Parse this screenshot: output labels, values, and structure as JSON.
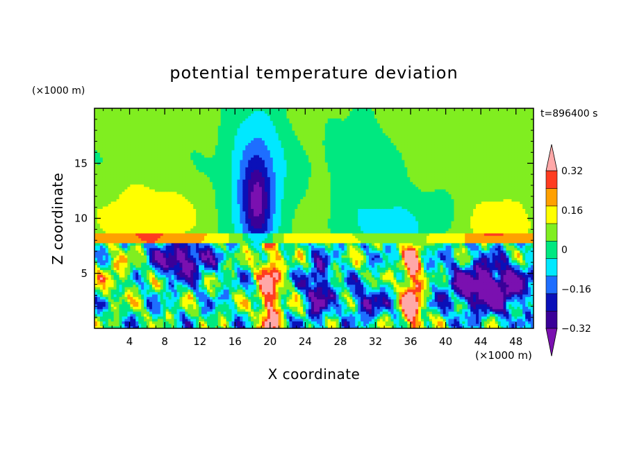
{
  "chart_data": {
    "type": "heatmap",
    "title": "potential temperature deviation",
    "xlabel": "X coordinate",
    "ylabel": "Z coordinate",
    "x_unit": "(×1000 m)",
    "y_unit": "(×1000 m)",
    "time_label": "t=896400 s",
    "xlim": [
      0,
      50
    ],
    "ylim": [
      0,
      20
    ],
    "x_ticks": [
      4,
      8,
      12,
      16,
      20,
      24,
      28,
      32,
      36,
      40,
      44,
      48
    ],
    "y_ticks": [
      5,
      10,
      15
    ],
    "colorbar": {
      "levels": [
        -0.4,
        -0.32,
        -0.24,
        -0.16,
        -0.08,
        0,
        0.08,
        0.16,
        0.24,
        0.32,
        0.4
      ],
      "tick_labels": [
        "0.32",
        "0.16",
        "0",
        "−0.16",
        "−0.32"
      ],
      "tick_values": [
        0.32,
        0.16,
        0,
        -0.16,
        -0.32
      ],
      "colors": [
        "#7a10b0",
        "#3a0098",
        "#0a10b8",
        "#1e6eff",
        "#00e8ff",
        "#00e880",
        "#80ee20",
        "#ffff00",
        "#ffa000",
        "#ff3c20",
        "#ffa8a8"
      ],
      "extend": "both"
    },
    "grid": false,
    "legend_position": "right"
  }
}
